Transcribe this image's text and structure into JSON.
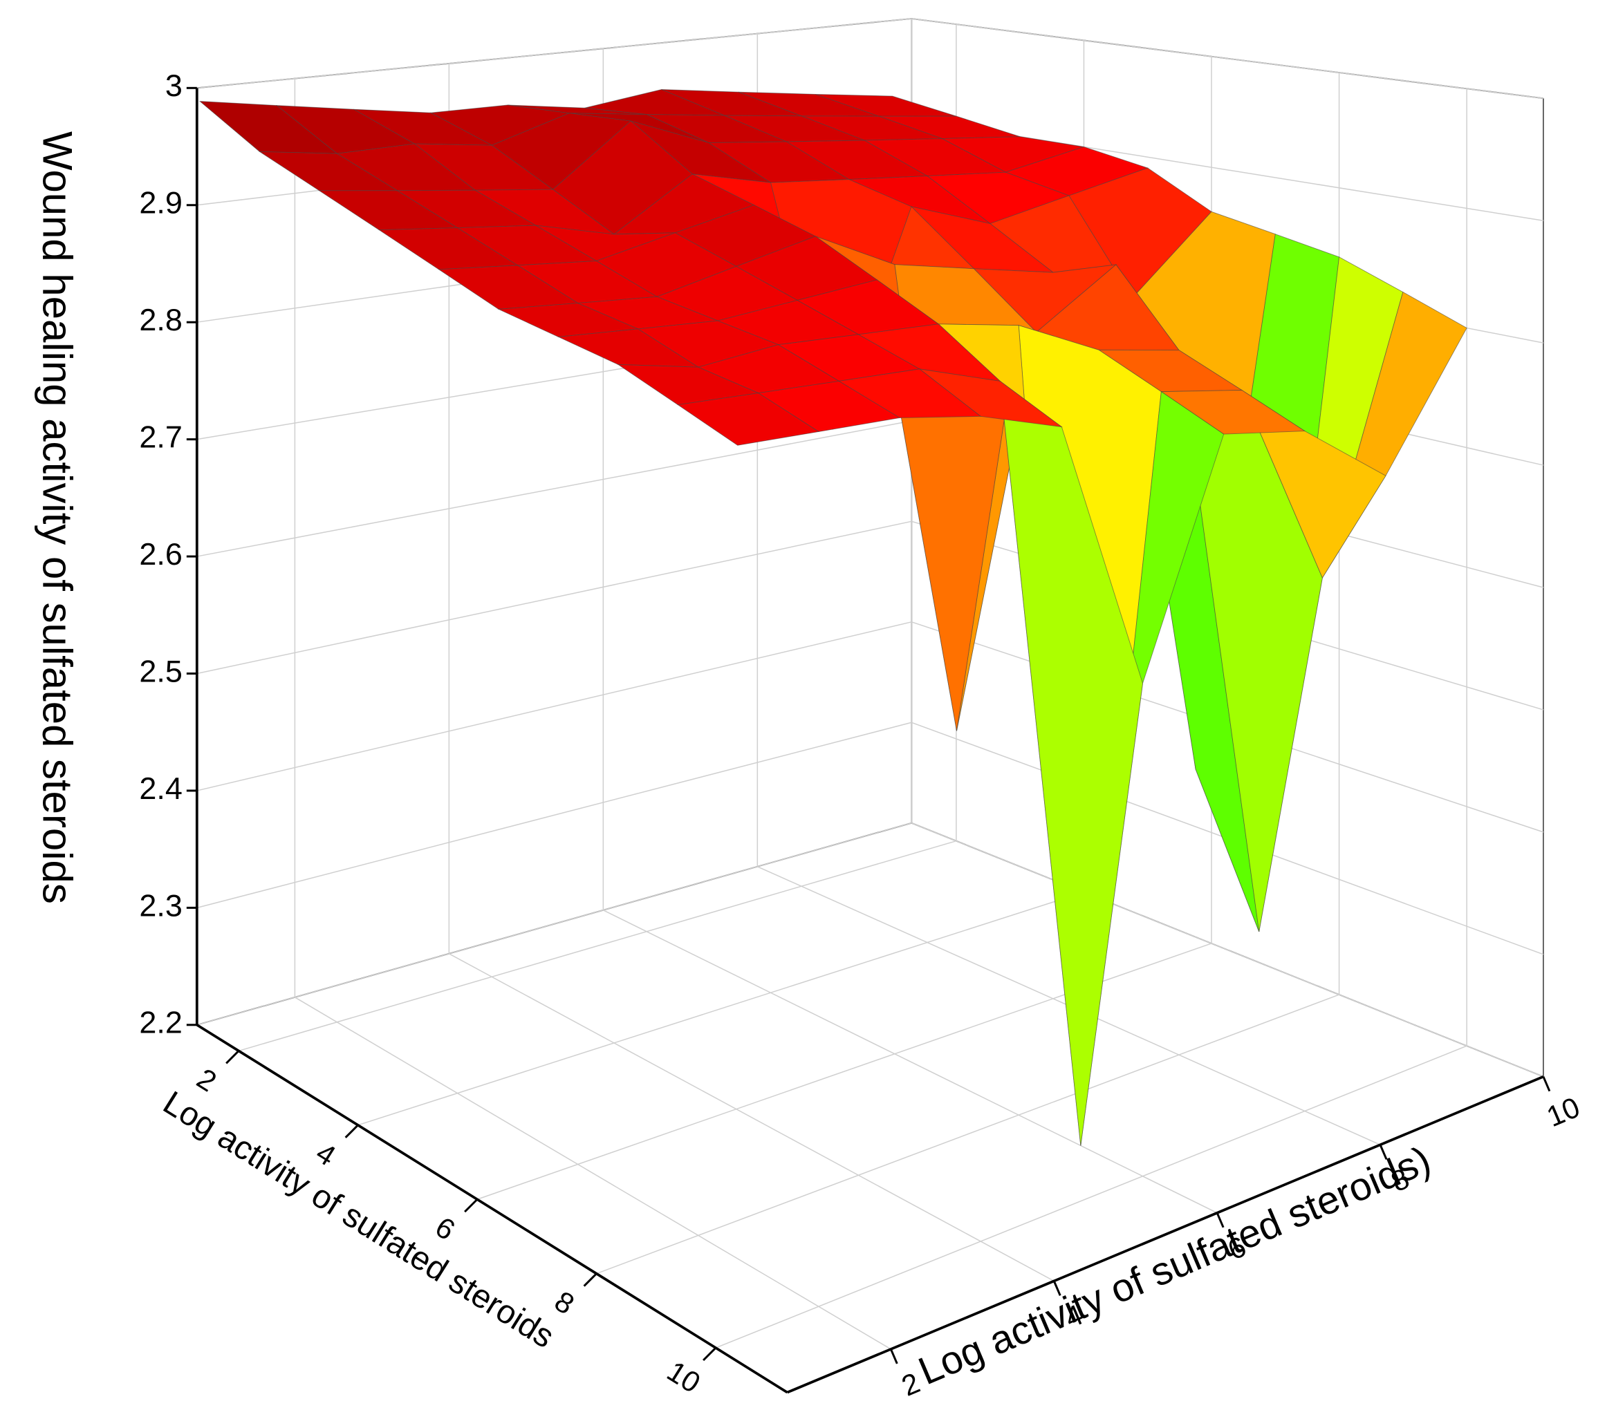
{
  "chart_data": {
    "type": "surface",
    "zlabel": "Wound healing activity of sulfated steroids",
    "xlabel": "Log activity of sulfated steroids",
    "ylabel": "Log activity of sulfated steroids)",
    "x": [
      1,
      2,
      3,
      4,
      5,
      6,
      7,
      8,
      9,
      10
    ],
    "y": [
      1,
      2,
      3,
      4,
      5,
      6,
      7,
      8,
      9,
      10
    ],
    "z": [
      [
        2.98,
        2.97,
        2.96,
        2.95,
        2.95,
        2.94,
        2.95,
        2.94,
        2.93,
        2.92
      ],
      [
        2.96,
        2.95,
        2.95,
        2.94,
        2.96,
        2.95,
        2.94,
        2.93,
        2.92,
        2.91
      ],
      [
        2.95,
        2.94,
        2.93,
        2.92,
        2.97,
        2.94,
        2.93,
        2.92,
        2.91,
        2.9
      ],
      [
        2.94,
        2.93,
        2.92,
        2.9,
        2.94,
        2.92,
        2.91,
        2.9,
        2.89,
        2.9
      ],
      [
        2.93,
        2.92,
        2.91,
        2.92,
        2.93,
        2.72,
        2.9,
        2.87,
        2.88,
        2.89
      ],
      [
        2.92,
        2.91,
        2.9,
        2.91,
        2.92,
        2.88,
        2.86,
        2.84,
        2.8,
        2.86
      ],
      [
        2.92,
        2.91,
        2.9,
        2.9,
        2.9,
        2.5,
        2.82,
        2.86,
        2.4,
        2.85
      ],
      [
        2.92,
        2.9,
        2.9,
        2.89,
        2.88,
        2.86,
        2.82,
        2.8,
        2.28,
        2.84
      ],
      [
        2.91,
        2.9,
        2.89,
        2.88,
        2.85,
        2.2,
        2.8,
        2.78,
        2.6,
        2.82
      ],
      [
        2.9,
        2.89,
        2.88,
        2.86,
        2.83,
        2.6,
        2.78,
        2.76,
        2.7,
        2.8
      ]
    ],
    "xlim": [
      1.3,
      11.2
    ],
    "ylim": [
      0.73,
      10
    ],
    "zlim": [
      2.2,
      3
    ],
    "xticks": [
      2,
      4,
      6,
      8,
      10
    ],
    "yticks": [
      2,
      4,
      6,
      8,
      10
    ],
    "zticks": [
      2.2,
      2.3,
      2.4,
      2.5,
      2.6,
      2.7,
      2.8,
      2.9,
      3
    ],
    "colormap": [
      "#7f00ff",
      "#0000ff",
      "#00ffff",
      "#00ff00",
      "#ffff00",
      "#ff8000",
      "#ff0000",
      "#8b0000"
    ],
    "grid": true
  }
}
